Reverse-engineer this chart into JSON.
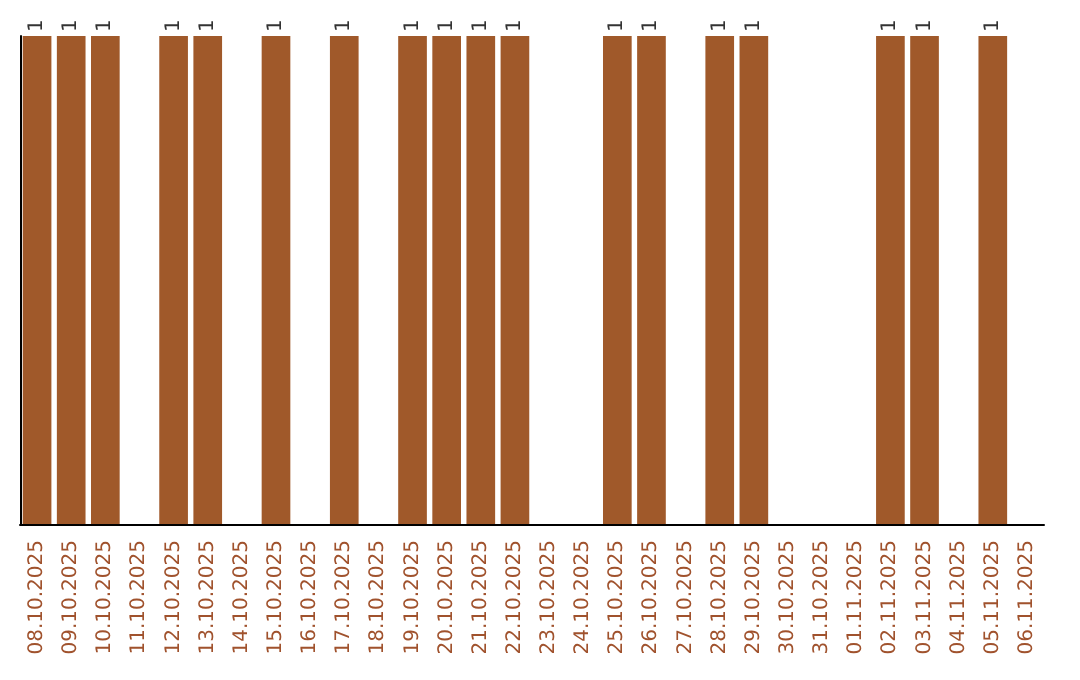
{
  "chart_data": {
    "type": "bar",
    "categories": [
      "08.10.2025",
      "09.10.2025",
      "10.10.2025",
      "11.10.2025",
      "12.10.2025",
      "13.10.2025",
      "14.10.2025",
      "15.10.2025",
      "16.10.2025",
      "17.10.2025",
      "18.10.2025",
      "19.10.2025",
      "20.10.2025",
      "21.10.2025",
      "22.10.2025",
      "23.10.2025",
      "24.10.2025",
      "25.10.2025",
      "26.10.2025",
      "27.10.2025",
      "28.10.2025",
      "29.10.2025",
      "30.10.2025",
      "31.10.2025",
      "01.11.2025",
      "02.11.2025",
      "03.11.2025",
      "04.11.2025",
      "05.11.2025",
      "06.11.2025"
    ],
    "values": [
      1,
      1,
      1,
      null,
      1,
      1,
      null,
      1,
      null,
      1,
      null,
      1,
      1,
      1,
      1,
      null,
      null,
      1,
      1,
      null,
      1,
      1,
      null,
      null,
      null,
      1,
      1,
      null,
      1,
      null
    ],
    "color": "#a0592a",
    "data_labels": true,
    "tick_labels": "x"
  }
}
